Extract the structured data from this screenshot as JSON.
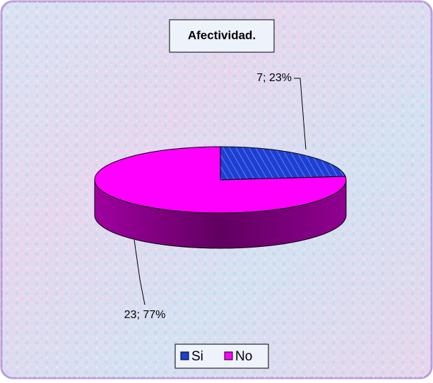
{
  "chart_data": {
    "type": "pie3d",
    "title": "Afectividad.",
    "categories": [
      "Si",
      "No"
    ],
    "values": [
      7,
      23
    ],
    "value_labels": [
      "7; 23%",
      "23; 77%"
    ],
    "colors": [
      "#1f3fd0",
      "#ff00ff"
    ],
    "legend": "bottom"
  }
}
